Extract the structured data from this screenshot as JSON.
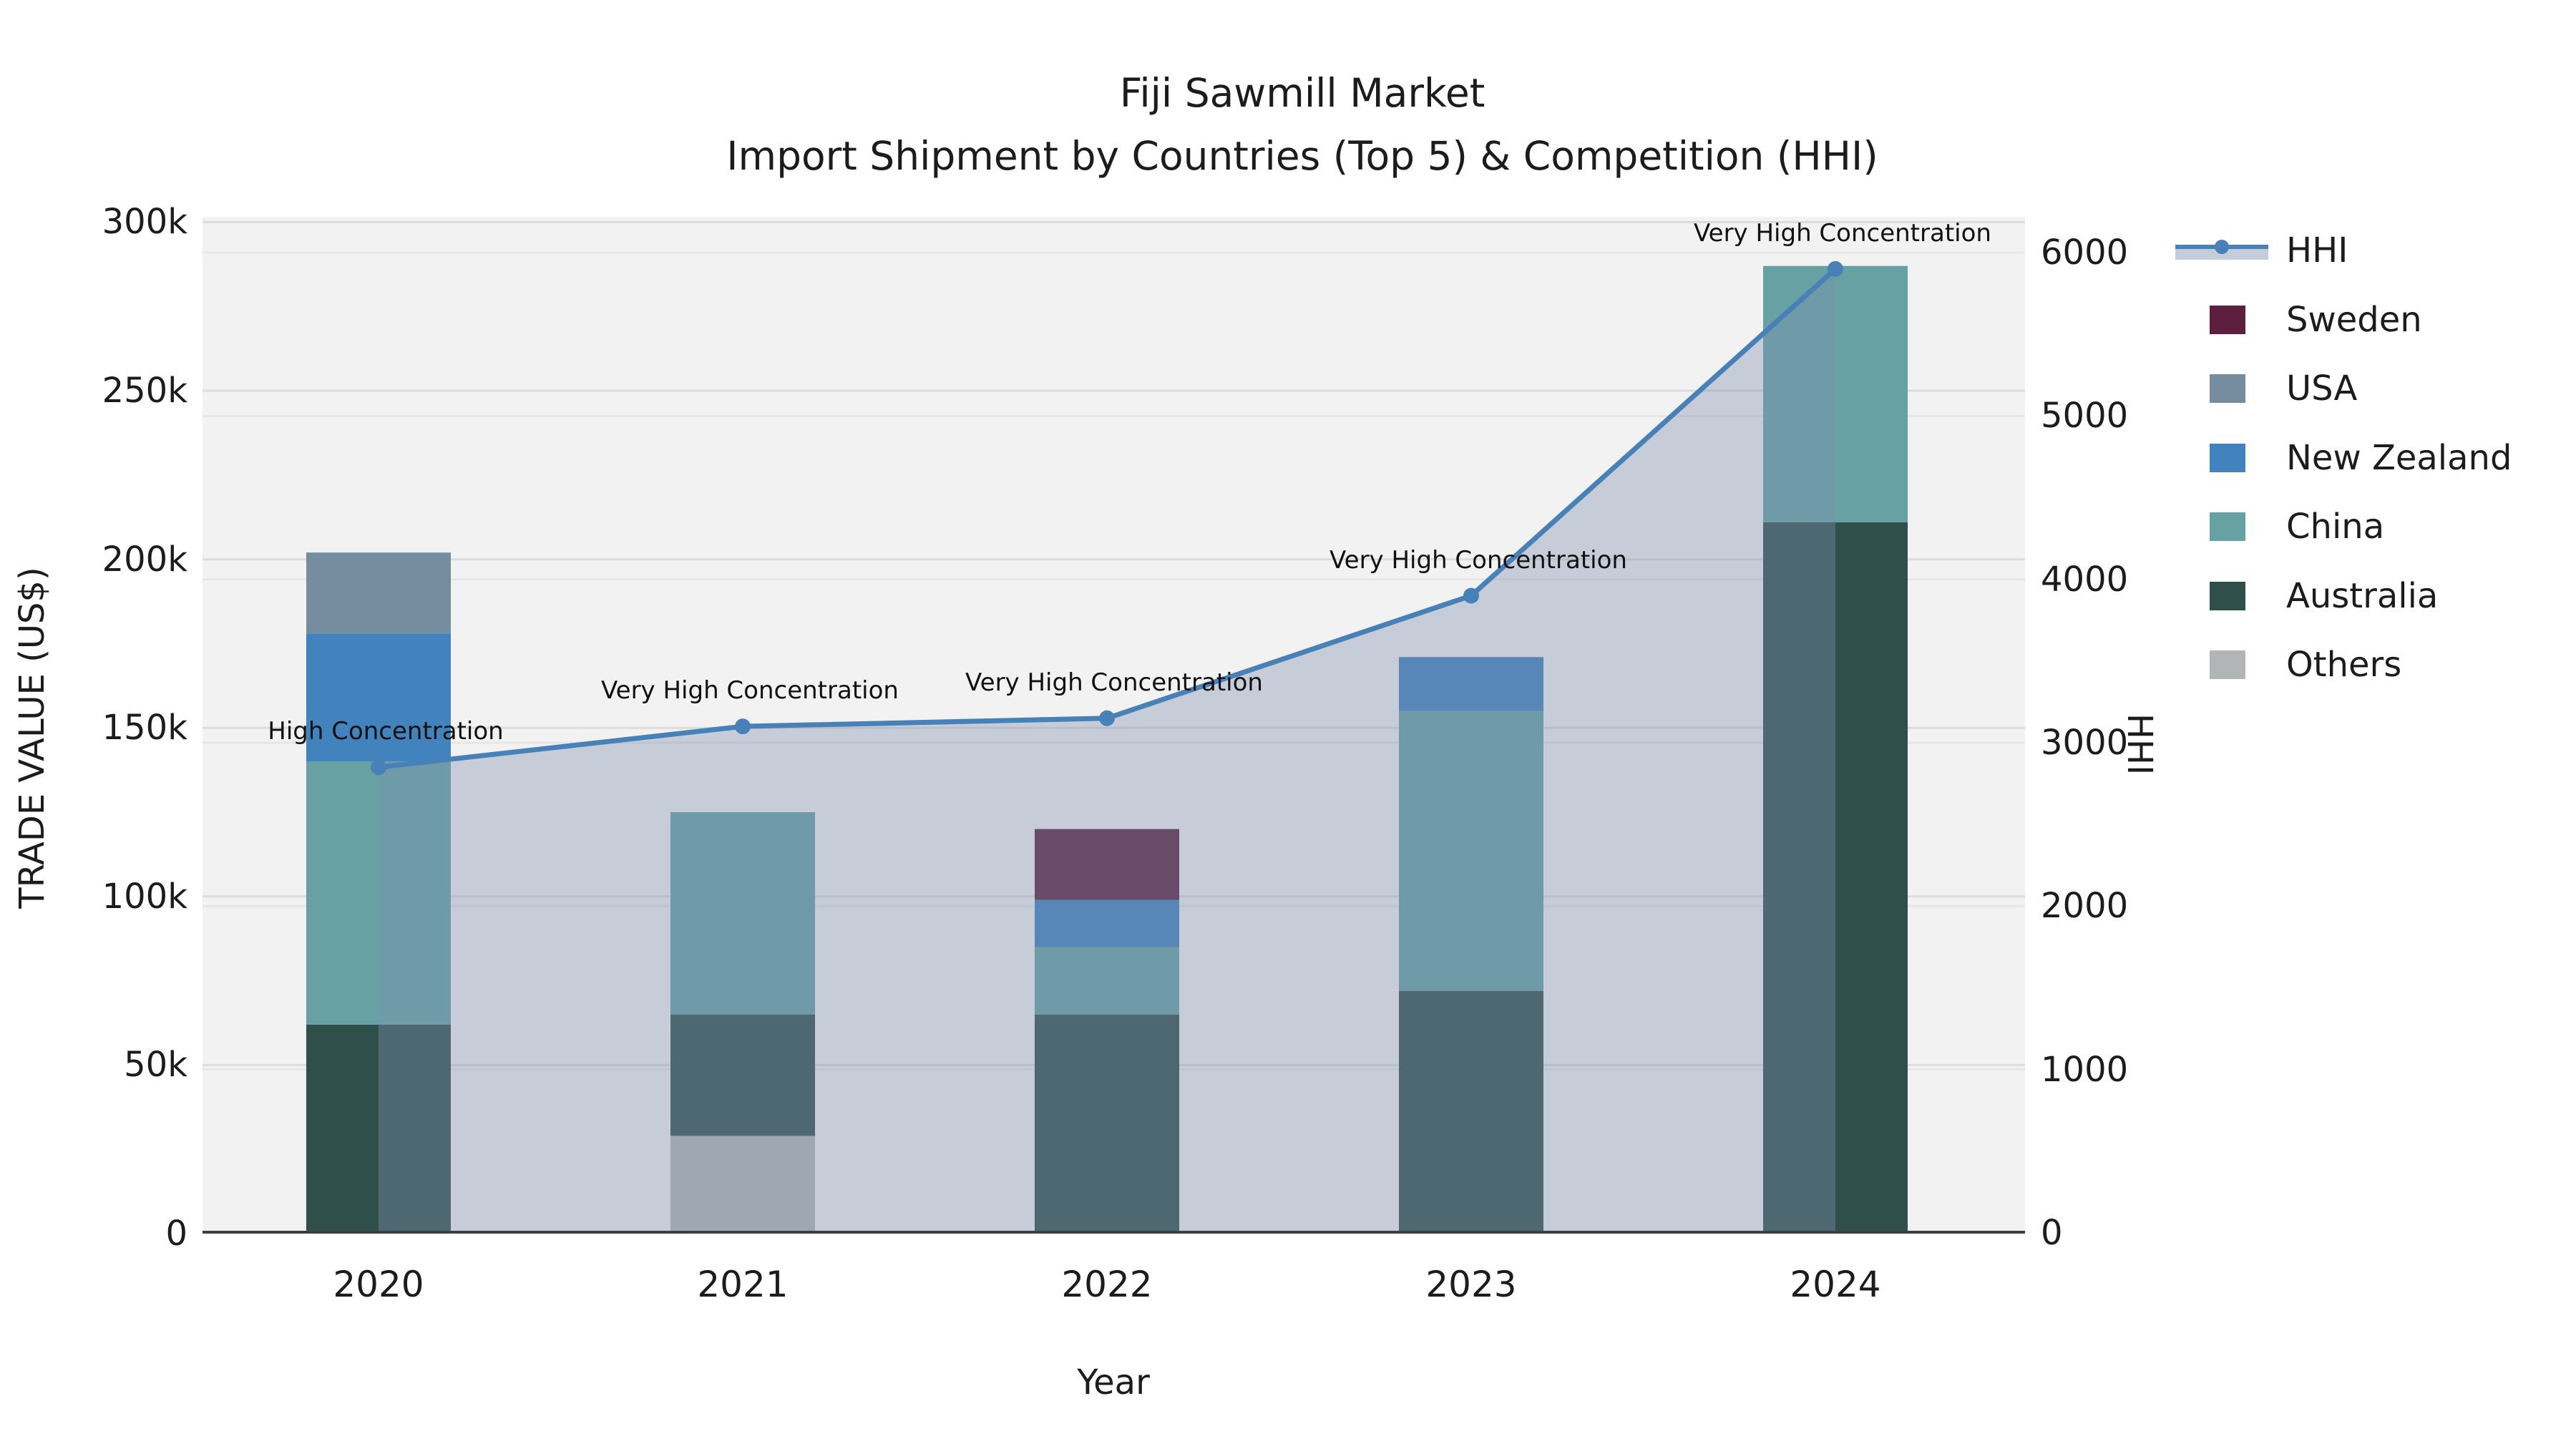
{
  "chart_data": {
    "type": "bar",
    "subtype": "stacked-bars-with-line-area-overlay",
    "title_line1": "Fiji Sawmill Market",
    "title_line2": "Import Shipment by Countries (Top 5) & Competition (HHI)",
    "xlabel": "Year",
    "ylabel_left": "TRADE VALUE (US$)",
    "ylabel_right": "HHI",
    "categories": [
      "2020",
      "2021",
      "2022",
      "2023",
      "2024"
    ],
    "xticks": [
      "2020",
      "2021",
      "2022",
      "2023",
      "2024"
    ],
    "yticks_left": [
      "0",
      "50k",
      "100k",
      "150k",
      "200k",
      "250k",
      "300k"
    ],
    "yticks_left_values": [
      0,
      50000,
      100000,
      150000,
      200000,
      250000,
      300000
    ],
    "yticks_right": [
      "0",
      "1000",
      "2000",
      "3000",
      "4000",
      "5000",
      "6000"
    ],
    "yticks_right_values": [
      0,
      1000,
      2000,
      3000,
      4000,
      5000,
      6000
    ],
    "ylim_left": [
      0,
      301600
    ],
    "ylim_right": [
      0,
      6220
    ],
    "grid": "on",
    "legend_position": "right-outside",
    "legend_order": [
      "HHI",
      "Sweden",
      "USA",
      "New Zealand",
      "China",
      "Australia",
      "Others"
    ],
    "series": [
      {
        "name": "Others",
        "color": "#b2b5b5",
        "values": [
          0,
          29000,
          0,
          0,
          0
        ]
      },
      {
        "name": "Australia",
        "color": "#2f4f4b",
        "values": [
          62000,
          36000,
          65000,
          72000,
          211000
        ]
      },
      {
        "name": "China",
        "color": "#67a1a3",
        "values": [
          78000,
          60000,
          20000,
          83000,
          76000
        ]
      },
      {
        "name": "New Zealand",
        "color": "#4282bd",
        "values": [
          38000,
          0,
          14000,
          16000,
          0
        ]
      },
      {
        "name": "USA",
        "color": "#768da0",
        "values": [
          24000,
          0,
          0,
          0,
          0
        ]
      },
      {
        "name": "Sweden",
        "color": "#5e1f3f",
        "values": [
          0,
          0,
          21000,
          0,
          0
        ]
      }
    ],
    "bar_totals": [
      202000,
      125000,
      120000,
      171000,
      287000
    ],
    "line": {
      "name": "HHI",
      "color": "#4781b8",
      "area_fill": "rgba(125,145,173,0.38)",
      "values": [
        2850,
        3100,
        3150,
        3900,
        5900
      ]
    },
    "annotations": [
      {
        "year": "2020",
        "text": "High Concentration"
      },
      {
        "year": "2021",
        "text": "Very High Concentration"
      },
      {
        "year": "2022",
        "text": "Very High Concentration"
      },
      {
        "year": "2023",
        "text": "Very High Concentration"
      },
      {
        "year": "2024",
        "text": "Very High Concentration"
      }
    ],
    "colors": {
      "plot_background": "#f2f2f2",
      "figure_background": "#ffffff",
      "grid_left_axis": "#dcdcdc",
      "grid_right_axis": "#e6e6e6",
      "bottom_spine": "#3f3f3f",
      "text": "#1c1c1c"
    }
  }
}
